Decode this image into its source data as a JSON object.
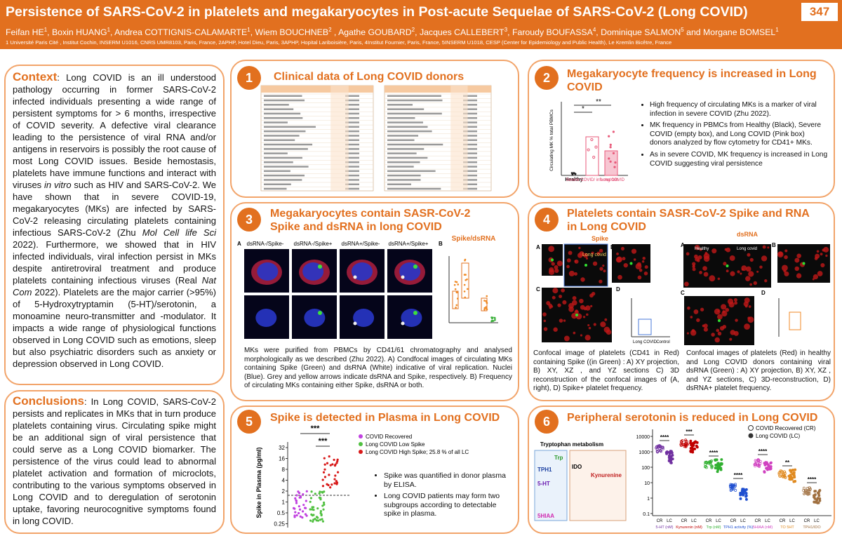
{
  "header": {
    "title": "Persistence of SARS-CoV-2 in platelets and megakaryocytes  in Post-acute Sequelae of SARS-CoV-2 (Long COVID)",
    "number": "347",
    "authors": [
      [
        "Feifan HE",
        "1"
      ],
      [
        ", Boxin HUANG",
        "1"
      ],
      [
        ", Andrea COTTIGNIS-CALAMARTE",
        "1"
      ],
      [
        ", Wiem BOUCHNEB",
        "2"
      ],
      [
        " , Agathe GOUBARD",
        "2"
      ],
      [
        ",  Jacques CALLEBERT",
        "3"
      ],
      [
        ", Faroudy BOUFASSA",
        "4"
      ],
      [
        ", Dominique SALMON",
        "5"
      ],
      [
        " and Morgane BOMSEL",
        "1"
      ]
    ],
    "affiliations": "1 Université Paris Cité , Institut Cochin, INSERM U1016, CNRS UMR8103, Paris, France, 2APHP, Hotel Dieu, Paris, 3APHP, Hopital Lariboisière, Paris, 4Institut Fournier, Paris, France, 5INSERM U1018, CESP (Center for Epidemiology and Public Health), Le Kremlin Bicêtre, France"
  },
  "context": {
    "heading": "Context",
    "body": [
      ": Long COVID is an ill understood pathology occurring in former SARS-CoV-2 infected individuals presenting a wide range of persistent symptoms for > 6 months, irrespective of COVID severity. A defective viral clearance leading to the persistence of viral RNA and/or antigens in reservoirs is possibly the root cause of most Long COVID   issues. Beside hemostasis, platelets have immune functions and interact with viruses ",
      "in vitro",
      " such as HIV and SARS-CoV-2. We have shown that in severe COVID-19, megakaryocytes (MKs) are infected by SARS-CoV-2 releasing circulating platelets containing infectious SARS-CoV-2 (Zhu ",
      "Mol Cell life Sci",
      " 2022). Furthermore, we showed that in  HIV  infected individuals, viral infection persist in MKs despite antiretroviral treatment and produce platelets containing infectious viruses (Real ",
      "Nat Com",
      " 2022). Platelets are the major carrier (>95%) of 5-Hydroxytryptamin (5-HT)/serotonin, a monoamine neuro-transmitter and -modulator. It impacts a wide range of physiological functions observed in Long COVID such as emotions, sleep but also psychiatric disorders such as anxiety or depression observed in Long COVID."
    ]
  },
  "conclusions": {
    "heading": "Conclusions",
    "body": ": In Long COVID, SARS-CoV-2 persists and replicates in MKs that in turn produce platelets containing virus. Circulating spike might be an additional sign of viral persistence that could serve as a Long COVID biomarker. The persistence of the virus could lead to abnormal platelet activation and formation of microclots, contributing to the various symptoms observed in Long COVID and to deregulation of serotonin uptake, favoring neurocognitive symptoms found in long COVID."
  },
  "panels": [
    {
      "number": "1",
      "title": "Clinical data of Long COVID donors"
    },
    {
      "number": "2",
      "title": "Megakaryocyte frequency is increased  in Long COVID",
      "y_label": "Circulating MK % total PBMCs",
      "groups": [
        "Healthy",
        "Severe COVID/ infected MK",
        "Long COVID"
      ],
      "stars": [
        "*",
        "**"
      ],
      "bullets": [
        "High frequency of circulating MKs is a marker of viral infection in severe COVID (Zhu 2022).",
        "MK frequency in PBMCs from Healthy (Black), Severe COVID (empty box), and Long COVID (Pink box) donors analyzed by flow cytometry for CD41+ MKs.",
        "As in severe COVID, MK frequency is increased in Long COVID suggesting viral persistence"
      ]
    },
    {
      "number": "3",
      "title": "Megakaryocytes contain SASR-CoV-2 Spike and dsRNA in long COVID",
      "labels": [
        "A",
        "B"
      ],
      "columns": [
        "dsRNA-/Spike-",
        "dsRNA-/Spike+",
        "dsRNA+/Spike-",
        "dsRNA+/Spike+"
      ],
      "chart_title": "Spike/dsRNA",
      "caption": "MKs were purified from PBMCs by CD41/61 chromatography and analysed morphologically as we described (Zhu 2022). A) Condfocal images of circulating MKs containing Spike (Green) and dsRNA (White) indicative of viral replication. Nuclei (Blue). Grey and yellow arrows indicate dsRNA and Spike, respectively. B) Frequency of circulating MKs containing either Spike, dsRNA or both."
    },
    {
      "number": "4",
      "title": "Platelets contain SASR-CoV-2 Spike and RNA in Long COVID",
      "subtitles": [
        "Spike",
        "dsRNA"
      ],
      "labels": [
        "A",
        "B",
        "C",
        "D"
      ],
      "image_labels": [
        "Long covid",
        "Healthy",
        "Long covid"
      ],
      "chart_groups": [
        "Long COVID",
        "Control"
      ],
      "captions": [
        "Confocal image of platelets (CD41 in Red) containing Spike ((in Green) : A) XY projection, B) XY, XZ , and YZ sections C) 3D reconstruction of the confocal images of (A, right), D) Spike+ platelet  frequency.",
        "Confocal images of platelets (Red) in healthy and Long COVID donors containing viral dsRNA (Green) : A) XY projection, B) XY, XZ , and YZ sections, C) 3D-reconstruction, D) dsRNA+ platelet  frequency."
      ]
    },
    {
      "number": "5",
      "title": "Spike is detected in Plasma in Long COVID",
      "y_label": "Spike in Plasma (pg/ml)",
      "yticks": [
        "32",
        "16",
        "8",
        "4",
        "2",
        "1",
        "0.5",
        "0.25"
      ],
      "stars": [
        "***",
        "***"
      ],
      "legend": [
        "COVID Recovered",
        "Long COVID Low Spike",
        "Long COVID High Spike; 25.8 % of all LC"
      ],
      "bullets": [
        "Spike was quantified in donor plasma by ELISA.",
        "Long COVID patients may form two subgroups according to detectable spike in plasma."
      ]
    },
    {
      "number": "6",
      "title": "Peripheral serotonin is reduced in Long COVID",
      "diagram_title": "Tryptophan metabolism",
      "diagram_labels": [
        "Trp",
        "TPH1",
        "5-HT",
        "5HIAA",
        "IDO",
        "Kynurenine"
      ],
      "legend": [
        "COVID Recovered (CR)",
        "Long COVID (LC)"
      ],
      "yticks": [
        "10000",
        "1000",
        "100",
        "10",
        "1",
        "0.1"
      ],
      "pair": [
        "CR",
        "LC"
      ],
      "groups": [
        "5-HT (nM)",
        "Kynurenin (nM)",
        "Trp (nM)",
        "TPH1 activity (%)",
        "5HIAA (nM)",
        "TO 5HT",
        "TPH1/IDO"
      ],
      "stars": [
        "****",
        "***",
        "****",
        "****",
        "****",
        "**",
        "****"
      ]
    }
  ]
}
